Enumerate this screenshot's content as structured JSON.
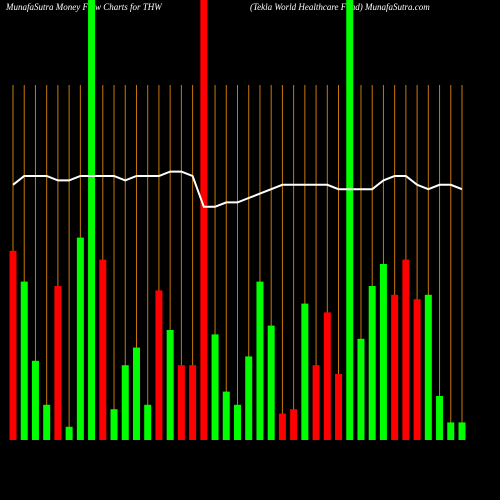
{
  "chart_data": {
    "type": "bar",
    "title": "MunafaSutra  Money Flow  Charts for THW",
    "subtitle": "(Tekla  World Healthcare   Fund) MunafaSutra.com",
    "values": [
      43,
      36,
      18,
      8,
      35,
      3,
      46,
      100,
      41,
      7,
      17,
      21,
      8,
      34,
      25,
      17,
      17,
      100,
      24,
      11,
      8,
      19,
      36,
      26,
      6,
      7,
      31,
      17,
      29,
      15,
      100,
      23,
      35,
      40,
      33,
      41,
      32,
      33,
      10,
      4,
      4
    ],
    "colors": [
      "#ff0000",
      "#00ff00",
      "#00ff00",
      "#00ff00",
      "#ff0000",
      "#00ff00",
      "#00ff00",
      "#00ff00",
      "#ff0000",
      "#00ff00",
      "#00ff00",
      "#00ff00",
      "#00ff00",
      "#ff0000",
      "#00ff00",
      "#ff0000",
      "#ff0000",
      "#ff0000",
      "#00ff00",
      "#00ff00",
      "#00ff00",
      "#00ff00",
      "#00ff00",
      "#00ff00",
      "#ff0000",
      "#ff0000",
      "#00ff00",
      "#ff0000",
      "#ff0000",
      "#ff0000",
      "#00ff00",
      "#00ff00",
      "#00ff00",
      "#00ff00",
      "#ff0000",
      "#ff0000",
      "#ff0000",
      "#00ff00",
      "#00ff00",
      "#00ff00",
      "#00ff00"
    ],
    "line_values": [
      58,
      60,
      60,
      60,
      59,
      59,
      60,
      60,
      60,
      60,
      59,
      60,
      60,
      60,
      61,
      61,
      60,
      53,
      53,
      54,
      54,
      55,
      56,
      57,
      58,
      58,
      58,
      58,
      58,
      57,
      57,
      57,
      57,
      59,
      60,
      60,
      58,
      57,
      58,
      58,
      57
    ],
    "line_color": "#ffffff",
    "grid_color": "#c8780a",
    "ylim": [
      0,
      100
    ]
  }
}
